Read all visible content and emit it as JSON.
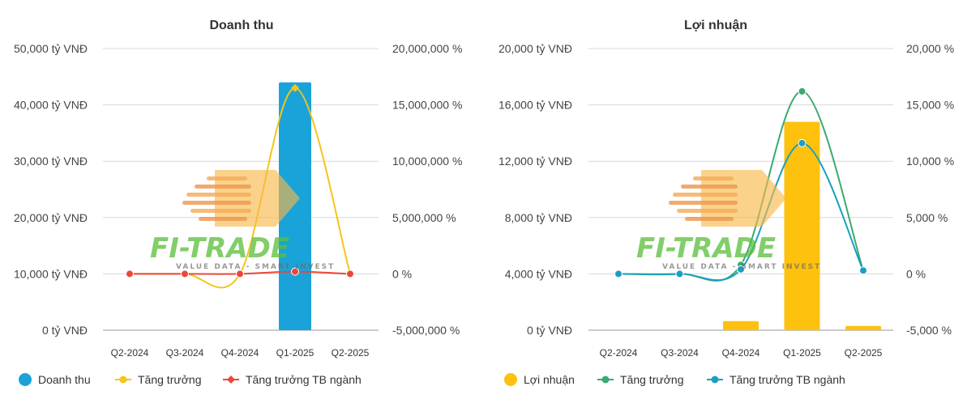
{
  "categories": [
    "Q2-2024",
    "Q3-2024",
    "Q4-2024",
    "Q1-2025",
    "Q2-2025"
  ],
  "watermark": {
    "brand": "FI-TRADE",
    "tagline": "VALUE DATA - SMART INVEST"
  },
  "chart_data": [
    {
      "type": "bar",
      "title": "Doanh thu",
      "categories": [
        "Q2-2024",
        "Q3-2024",
        "Q4-2024",
        "Q1-2025",
        "Q2-2025"
      ],
      "left_axis": {
        "min": 0,
        "max": 50000,
        "ticks": [
          {
            "value": 50000,
            "label": "50,000 tỷ VNĐ"
          },
          {
            "value": 40000,
            "label": "40,000 tỷ VNĐ"
          },
          {
            "value": 30000,
            "label": "30,000 tỷ VNĐ"
          },
          {
            "value": 20000,
            "label": "20,000 tỷ VNĐ"
          },
          {
            "value": 10000,
            "label": "10,000 tỷ VNĐ"
          },
          {
            "value": 0,
            "label": "0 tỷ VNĐ"
          }
        ]
      },
      "right_axis": {
        "min": -5000000,
        "max": 20000000,
        "ticks": [
          {
            "value": 20000000,
            "label": "20,000,000 %"
          },
          {
            "value": 15000000,
            "label": "15,000,000 %"
          },
          {
            "value": 10000000,
            "label": "10,000,000 %"
          },
          {
            "value": 5000000,
            "label": "5,000,000 %"
          },
          {
            "value": 0,
            "label": "0 %"
          },
          {
            "value": -5000000,
            "label": "-5,000,000 %"
          }
        ]
      },
      "series": [
        {
          "name": "Doanh thu",
          "kind": "bar",
          "axis": "left",
          "color": "#1aa3d9",
          "values": [
            0,
            0,
            0,
            44000,
            0
          ]
        },
        {
          "name": "Tăng trưởng",
          "kind": "line",
          "axis": "right",
          "color": "#f5c518",
          "values": [
            0,
            0,
            0,
            16500000,
            0
          ]
        },
        {
          "name": "Tăng trưởng TB ngành",
          "kind": "line",
          "axis": "right",
          "color": "#e8483a",
          "values": [
            0,
            0,
            0,
            200000,
            0
          ]
        }
      ]
    },
    {
      "type": "bar",
      "title": "Lợi nhuận",
      "categories": [
        "Q2-2024",
        "Q3-2024",
        "Q4-2024",
        "Q1-2025",
        "Q2-2025"
      ],
      "left_axis": {
        "min": 0,
        "max": 20000,
        "ticks": [
          {
            "value": 20000,
            "label": "20,000 tỷ VNĐ"
          },
          {
            "value": 16000,
            "label": "16,000 tỷ VNĐ"
          },
          {
            "value": 12000,
            "label": "12,000 tỷ VNĐ"
          },
          {
            "value": 8000,
            "label": "8,000 tỷ VNĐ"
          },
          {
            "value": 4000,
            "label": "4,000 tỷ VNĐ"
          },
          {
            "value": 0,
            "label": "0 tỷ VNĐ"
          }
        ]
      },
      "right_axis": {
        "min": -5000,
        "max": 20000,
        "ticks": [
          {
            "value": 20000,
            "label": "20,000 %"
          },
          {
            "value": 15000,
            "label": "15,000 %"
          },
          {
            "value": 10000,
            "label": "10,000 %"
          },
          {
            "value": 5000,
            "label": "5,000 %"
          },
          {
            "value": 0,
            "label": "0 %"
          },
          {
            "value": -5000,
            "label": "-5,000 %"
          }
        ]
      },
      "series": [
        {
          "name": "Lợi nhuận",
          "kind": "bar",
          "axis": "left",
          "color": "#fdc10e",
          "values": [
            0,
            0,
            650,
            14800,
            300
          ]
        },
        {
          "name": "Tăng trưởng",
          "kind": "line",
          "axis": "right",
          "color": "#3aaa6f",
          "values": [
            0,
            0,
            800,
            16200,
            300
          ]
        },
        {
          "name": "Tăng trưởng TB ngành",
          "kind": "line",
          "axis": "right",
          "color": "#1a9fc0",
          "values": [
            0,
            0,
            400,
            11600,
            300
          ]
        }
      ]
    }
  ]
}
